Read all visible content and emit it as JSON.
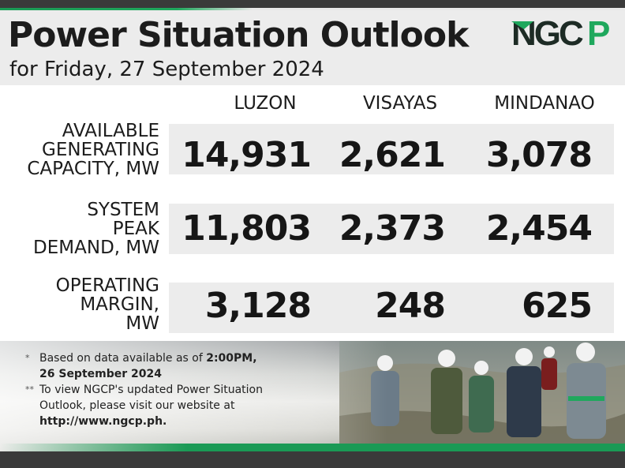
{
  "header": {
    "title": "Power Situation Outlook",
    "subtitle": "for Friday, 27 September 2024",
    "logo_text": "NGCP",
    "colors": {
      "brand_green": "#1a9a55",
      "logo_dark": "#1d2b25",
      "band_gray": "#ececec",
      "frame_dark": "#3a3a3a"
    }
  },
  "table": {
    "columns": [
      "LUZON",
      "VISAYAS",
      "MINDANAO"
    ],
    "rows": [
      {
        "label_lines": [
          "AVAILABLE",
          "GENERATING",
          "CAPACITY, MW"
        ],
        "values": [
          "14,931",
          "2,621",
          "3,078"
        ]
      },
      {
        "label_lines": [
          "SYSTEM",
          "PEAK",
          "DEMAND, MW"
        ],
        "values": [
          "11,803",
          "2,373",
          "2,454"
        ]
      },
      {
        "label_lines": [
          "OPERATING",
          "MARGIN,",
          "MW"
        ],
        "values": [
          "3,128",
          "248",
          "625"
        ]
      }
    ]
  },
  "footer": {
    "note1": {
      "mark": "*",
      "text": "Based on data available as of ",
      "time": "2:00PM,",
      "date": "26 September 2024"
    },
    "note2": {
      "mark": "**",
      "line1": "To view NGCP's updated Power Situation",
      "line2": "Outlook, please visit our website at",
      "url": "http://www.ngcp.ph."
    }
  }
}
